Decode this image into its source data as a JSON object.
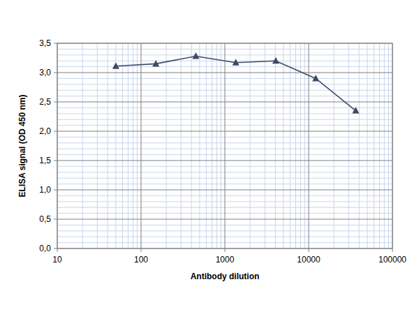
{
  "chart_data": {
    "type": "line",
    "x_label": "Antibody dilution",
    "y_label": "ELISA signal (OD 450 nm)",
    "x": [
      50,
      150,
      450,
      1350,
      4050,
      12150,
      36450
    ],
    "values": [
      3.11,
      3.15,
      3.28,
      3.17,
      3.2,
      2.9,
      2.35
    ],
    "color": "#3d4a66",
    "marker": "triangle",
    "line_style": "solid",
    "log": "x",
    "grid": true,
    "xlim": [
      10,
      100000
    ],
    "xticks": [
      10,
      100,
      1000,
      10000,
      100000
    ],
    "ylim": [
      0,
      3.5
    ],
    "yticks": [
      {
        "value": 0,
        "label": "0,0"
      },
      {
        "value": 0.5,
        "label": "0,5"
      },
      {
        "value": 1,
        "label": "1,0"
      },
      {
        "value": 1.5,
        "label": "1,5"
      },
      {
        "value": 2,
        "label": "2,0"
      },
      {
        "value": 2.5,
        "label": "2,5"
      },
      {
        "value": 3,
        "label": "3,0"
      },
      {
        "value": 3.5,
        "label": "3,5"
      }
    ]
  }
}
